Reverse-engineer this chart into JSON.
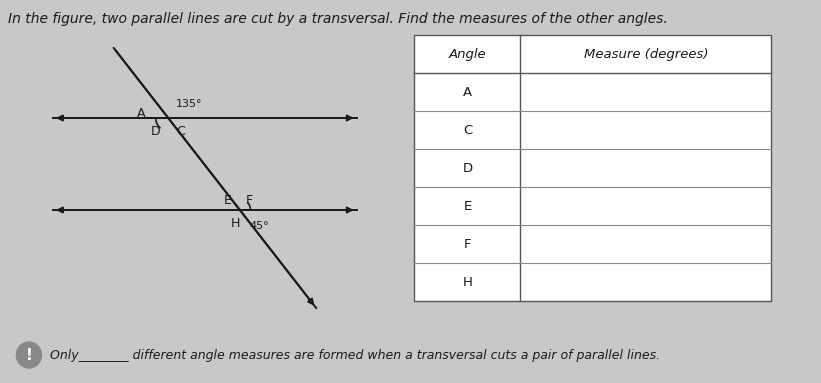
{
  "title": "In the figure, two parallel lines are cut by a transversal. Find the measures of the other angles.",
  "bg_color": "#c8c8c8",
  "table_bg": "#e8e8e8",
  "table_headers": [
    "Angle",
    "Measure (degrees)"
  ],
  "table_rows": [
    "A",
    "C",
    "D",
    "E",
    "F",
    "H"
  ],
  "angle_135_label": "135°",
  "angle_45_label": "45°",
  "footer_text_1": "Only",
  "footer_underline": "________",
  "footer_text_2": "different angle measures are formed when a transversal cuts a pair of parallel lines.",
  "icon_color": "#888888",
  "line_color": "#1a1a1a",
  "text_color": "#1a1a1a",
  "title_fontsize": 10,
  "label_fontsize": 9,
  "footer_fontsize": 9
}
